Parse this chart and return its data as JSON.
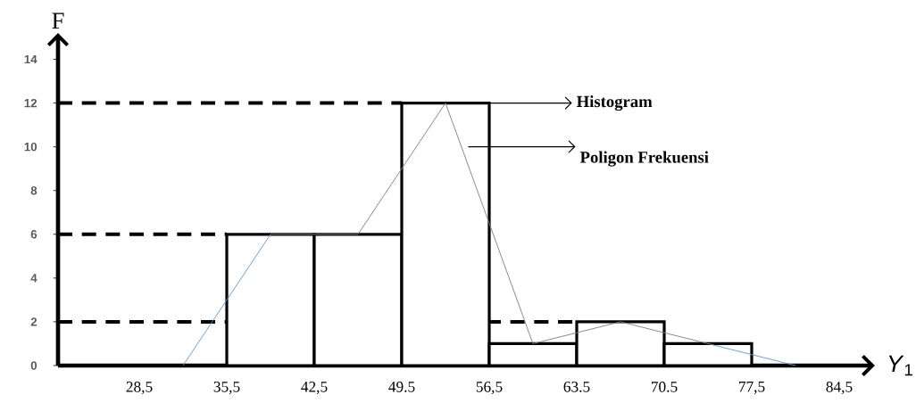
{
  "chart_data": {
    "type": "histogram",
    "xlabel": "*Y*$_{1}$",
    "ylabel": "F",
    "xlim": [
      22,
      87
    ],
    "ylim": [
      0,
      15
    ],
    "xticks": [
      {
        "value": 28.5,
        "label": "28,5"
      },
      {
        "value": 35.5,
        "label": "35,5"
      },
      {
        "value": 42.5,
        "label": "42,5"
      },
      {
        "value": 49.5,
        "label": "49.5"
      },
      {
        "value": 56.5,
        "label": "56,5"
      },
      {
        "value": 63.5,
        "label": "63.5"
      },
      {
        "value": 70.5,
        "label": "70.5"
      },
      {
        "value": 77.5,
        "label": "77,5"
      },
      {
        "value": 84.5,
        "label": "84,5"
      }
    ],
    "yticks": [
      0,
      2,
      4,
      6,
      8,
      10,
      12,
      14
    ],
    "series": [
      {
        "type": "histogram",
        "bins": [
          35.5,
          42.5,
          49.5,
          56.5,
          63.5,
          70.5,
          77.5
        ],
        "values": [
          6,
          6,
          12,
          1,
          2,
          1
        ],
        "color": "#000000"
      },
      {
        "type": "line",
        "x": [
          39,
          46,
          53,
          60,
          67,
          74
        ],
        "values": [
          6,
          6,
          12,
          1,
          2,
          1
        ],
        "color": "#808080"
      },
      {
        "type": "line",
        "x": [
          32,
          39
        ],
        "values": [
          0,
          6
        ],
        "color": "#5b9bd5"
      },
      {
        "type": "line",
        "x": [
          74,
          81
        ],
        "values": [
          1,
          0
        ],
        "color": "#5b9bd5"
      }
    ],
    "ref_lines": [
      {
        "axis": "y",
        "value": 12,
        "line_style": "dashed",
        "color": "#000000"
      },
      {
        "axis": "y",
        "value": 6,
        "line_style": "dashed",
        "color": "#000000"
      },
      {
        "axis": "y",
        "value": 2,
        "line_style": "dashed",
        "color": "#000000"
      }
    ],
    "annotations": [
      "Histogram",
      "Poligon Frekuensi"
    ]
  }
}
